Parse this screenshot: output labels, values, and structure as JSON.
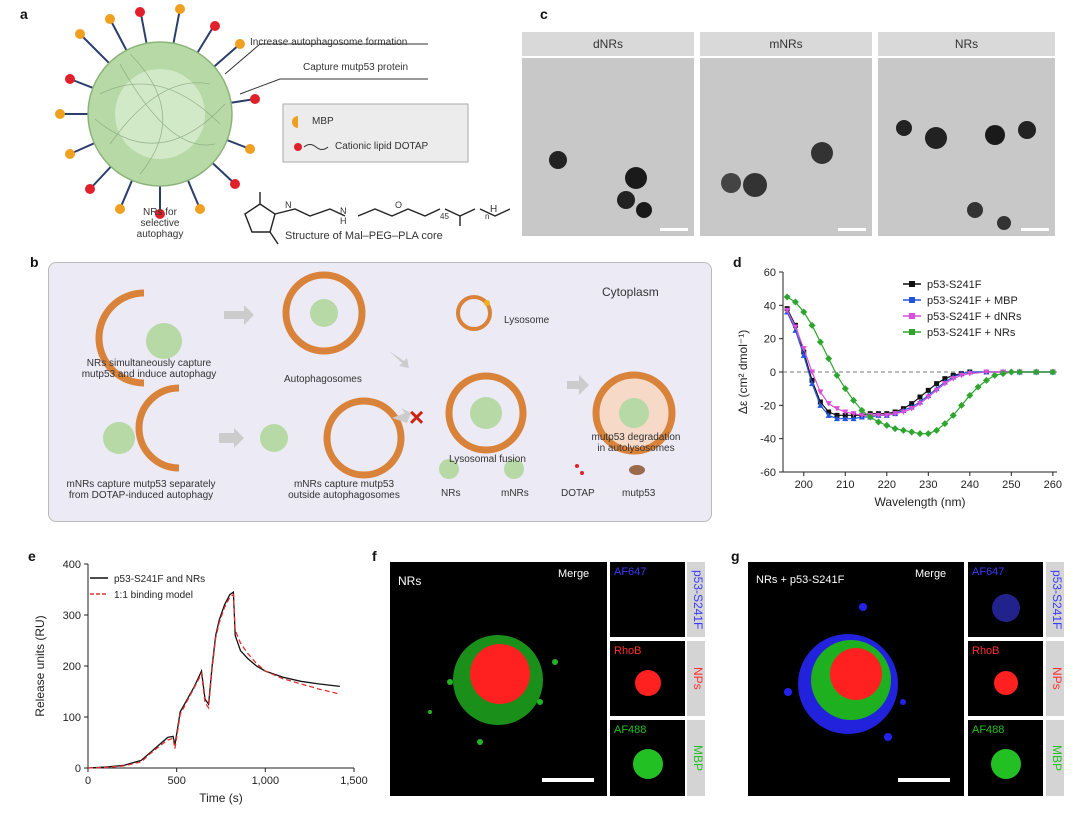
{
  "panel_labels": {
    "a": "a",
    "b": "b",
    "c": "c",
    "d": "d",
    "e": "e",
    "f": "f",
    "g": "g"
  },
  "panel_a": {
    "callout1": "Increase autophagosome formation",
    "callout2": "Capture mutp53 protein",
    "legend_mbp": "MBP",
    "legend_dotap": "Cationic lipid DOTAP",
    "nr_caption_line1": "NRs for",
    "nr_caption_line2": "selective autophagy",
    "structure_caption": "Structure of Mal–PEG–PLA core",
    "chem_H": "H",
    "chem_N": "N",
    "chem_O": "O",
    "chem_NH_N": "N",
    "chem_NH_H": "H",
    "chem_sub1": "45",
    "chem_sub2": "n"
  },
  "panel_b": {
    "cytoplasm": "Cytoplasm",
    "lysosome": "Lysosome",
    "text_nrs_capture_l1": "NRs simultaneously capture",
    "text_nrs_capture_l2": "mutp53 and induce autophagy",
    "text_autophagosomes": "Autophagosomes",
    "text_lysosomal_fusion": "Lysosomal fusion",
    "text_degradation_l1": "mutp53 degradation",
    "text_degradation_l2": "in autolysosomes",
    "text_mnrs_sep_l1": "mNRs capture mutp53 separately",
    "text_mnrs_sep_l2": "from DOTAP-induced autophagy",
    "text_mnrs_out_l1": "mNRs capture mutp53",
    "text_mnrs_out_l2": "outside autophagosomes",
    "legend_nrs": "NRs",
    "legend_mnrs": "mNRs",
    "legend_dotap": "DOTAP",
    "legend_mutp53": "mutp53"
  },
  "panel_c": {
    "headers": [
      "dNRs",
      "mNRs",
      "NRs"
    ]
  },
  "panel_f": {
    "title": "NRs",
    "merge": "Merge",
    "side": [
      "p53-S241F",
      "NPs",
      "MBP"
    ],
    "channels": [
      "AF647",
      "RhoB",
      "AF488"
    ]
  },
  "panel_g": {
    "title": "NRs + p53-S241F",
    "merge": "Merge",
    "side": [
      "p53-S241F",
      "NPs",
      "MBP"
    ],
    "channels": [
      "AF647",
      "RhoB",
      "AF488"
    ]
  },
  "chart_data": [
    {
      "type": "line",
      "panel": "d",
      "xlabel": "Wavelength (nm)",
      "ylabel": "Δε (cm² dmol⁻¹)",
      "xlim": [
        195,
        261
      ],
      "ylim": [
        -60,
        60
      ],
      "xticks": [
        200,
        210,
        220,
        230,
        240,
        250,
        260
      ],
      "yticks": [
        -60,
        -40,
        -20,
        0,
        20,
        40,
        60
      ],
      "legend_position": "top-right",
      "series": [
        {
          "name": "p53-S241F",
          "color": "#111111",
          "marker": "square",
          "x": [
            196,
            198,
            200,
            202,
            204,
            206,
            208,
            210,
            212,
            214,
            216,
            218,
            220,
            222,
            224,
            226,
            228,
            230,
            232,
            234,
            236,
            238,
            240,
            244,
            248,
            252,
            256,
            260
          ],
          "y": [
            38,
            28,
            12,
            -5,
            -18,
            -24,
            -26,
            -26,
            -26,
            -26,
            -25,
            -25,
            -25,
            -24,
            -22,
            -19,
            -15,
            -11,
            -7,
            -4,
            -2,
            -1,
            0,
            0,
            0,
            0,
            0,
            0
          ]
        },
        {
          "name": "p53-S241F + MBP",
          "color": "#2255dd",
          "marker": "triangle",
          "x": [
            196,
            198,
            200,
            202,
            204,
            206,
            208,
            210,
            212,
            214,
            216,
            218,
            220,
            222,
            224,
            226,
            228,
            230,
            232,
            234,
            236,
            238,
            240,
            244,
            248,
            252,
            256,
            260
          ],
          "y": [
            36,
            25,
            10,
            -7,
            -20,
            -26,
            -28,
            -28,
            -28,
            -27,
            -27,
            -26,
            -26,
            -25,
            -23,
            -21,
            -18,
            -14,
            -10,
            -6,
            -3,
            -1,
            0,
            0,
            0,
            0,
            0,
            0
          ]
        },
        {
          "name": "p53-S241F + dNRs",
          "color": "#d94fd9",
          "marker": "triangle-down",
          "x": [
            196,
            198,
            200,
            202,
            204,
            206,
            208,
            210,
            212,
            214,
            216,
            218,
            220,
            222,
            224,
            226,
            228,
            230,
            232,
            234,
            236,
            238,
            240,
            244,
            248,
            252,
            256,
            260
          ],
          "y": [
            37,
            27,
            14,
            0,
            -12,
            -19,
            -22,
            -24,
            -25,
            -26,
            -26,
            -26,
            -26,
            -25,
            -24,
            -22,
            -19,
            -15,
            -11,
            -7,
            -4,
            -2,
            -1,
            0,
            0,
            0,
            0,
            0
          ]
        },
        {
          "name": "p53-S241F + NRs",
          "color": "#2fa52f",
          "marker": "diamond",
          "x": [
            196,
            198,
            200,
            202,
            204,
            206,
            208,
            210,
            212,
            214,
            216,
            218,
            220,
            222,
            224,
            226,
            228,
            230,
            232,
            234,
            236,
            238,
            240,
            242,
            244,
            246,
            248,
            250,
            252,
            256,
            260
          ],
          "y": [
            45,
            42,
            36,
            28,
            18,
            8,
            -2,
            -10,
            -17,
            -23,
            -27,
            -30,
            -32,
            -34,
            -35,
            -36,
            -37,
            -37,
            -35,
            -31,
            -26,
            -20,
            -14,
            -9,
            -5,
            -2,
            -1,
            0,
            0,
            0,
            0
          ]
        }
      ]
    },
    {
      "type": "line",
      "panel": "e",
      "xlabel": "Time (s)",
      "ylabel": "Release units (RU)",
      "xlim": [
        0,
        1500
      ],
      "ylim": [
        0,
        400
      ],
      "xticks": [
        0,
        500,
        1000,
        1500
      ],
      "xtick_labels": [
        "0",
        "500",
        "1,000",
        "1,500"
      ],
      "yticks": [
        0,
        100,
        200,
        300,
        400
      ],
      "legend_position": "top-left",
      "series": [
        {
          "name": "p53-S241F and NRs",
          "color": "#111111",
          "style": "solid",
          "x": [
            0,
            100,
            200,
            300,
            350,
            400,
            450,
            480,
            490,
            520,
            560,
            600,
            640,
            660,
            680,
            700,
            720,
            740,
            770,
            800,
            820,
            830,
            860,
            900,
            950,
            1000,
            1100,
            1200,
            1300,
            1420
          ],
          "y": [
            0,
            2,
            5,
            15,
            30,
            45,
            60,
            62,
            45,
            110,
            135,
            160,
            190,
            135,
            125,
            200,
            260,
            290,
            320,
            340,
            345,
            260,
            230,
            215,
            200,
            190,
            178,
            170,
            165,
            160
          ]
        },
        {
          "name": "1:1 binding model",
          "color": "#e03030",
          "style": "dashed",
          "x": [
            0,
            100,
            200,
            300,
            350,
            400,
            450,
            480,
            490,
            520,
            560,
            600,
            640,
            660,
            680,
            700,
            720,
            740,
            770,
            800,
            820,
            830,
            860,
            900,
            950,
            1000,
            1100,
            1200,
            1300,
            1420
          ],
          "y": [
            0,
            1,
            4,
            12,
            28,
            42,
            55,
            58,
            38,
            105,
            132,
            158,
            185,
            128,
            118,
            195,
            255,
            285,
            315,
            335,
            340,
            270,
            245,
            225,
            205,
            190,
            175,
            165,
            155,
            145
          ]
        }
      ]
    }
  ]
}
